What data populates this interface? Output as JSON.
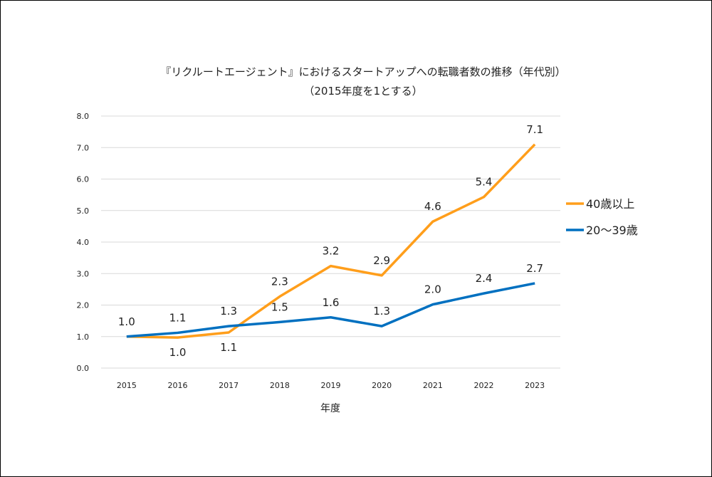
{
  "chart_data": {
    "type": "line",
    "title": "『リクルートエージェント』におけるスタートアップへの転職者数の推移（年代別）",
    "subtitle": "（2015年度を1とする）",
    "xlabel": "年度",
    "ylabel": "",
    "categories": [
      "2015",
      "2016",
      "2017",
      "2018",
      "2019",
      "2020",
      "2021",
      "2022",
      "2023"
    ],
    "ylim": [
      0,
      8
    ],
    "yticks": [
      "0.0",
      "1.0",
      "2.0",
      "3.0",
      "4.0",
      "5.0",
      "6.0",
      "7.0",
      "8.0"
    ],
    "grid": true,
    "legend_placement": "right",
    "series": [
      {
        "name": "40歳以上",
        "color": "#ff9e1b",
        "values": [
          1.0,
          0.97,
          1.13,
          2.27,
          3.24,
          2.94,
          4.65,
          5.43,
          7.1
        ],
        "labels": [
          "",
          "1.0",
          "1.1",
          "2.3",
          "3.2",
          "2.9",
          "4.6",
          "5.4",
          "7.1"
        ],
        "label_position": [
          "above",
          "below",
          "below",
          "above",
          "above",
          "above",
          "above",
          "above",
          "above"
        ]
      },
      {
        "name": "20〜39歳",
        "color": "#0070c0",
        "values": [
          1.0,
          1.12,
          1.33,
          1.46,
          1.61,
          1.33,
          2.02,
          2.37,
          2.69
        ],
        "labels": [
          "1.0",
          "1.1",
          "1.3",
          "1.5",
          "1.6",
          "1.3",
          "2.0",
          "2.4",
          "2.7"
        ],
        "label_position": [
          "above",
          "above",
          "above",
          "above",
          "above",
          "above",
          "above",
          "above",
          "above"
        ]
      }
    ]
  }
}
